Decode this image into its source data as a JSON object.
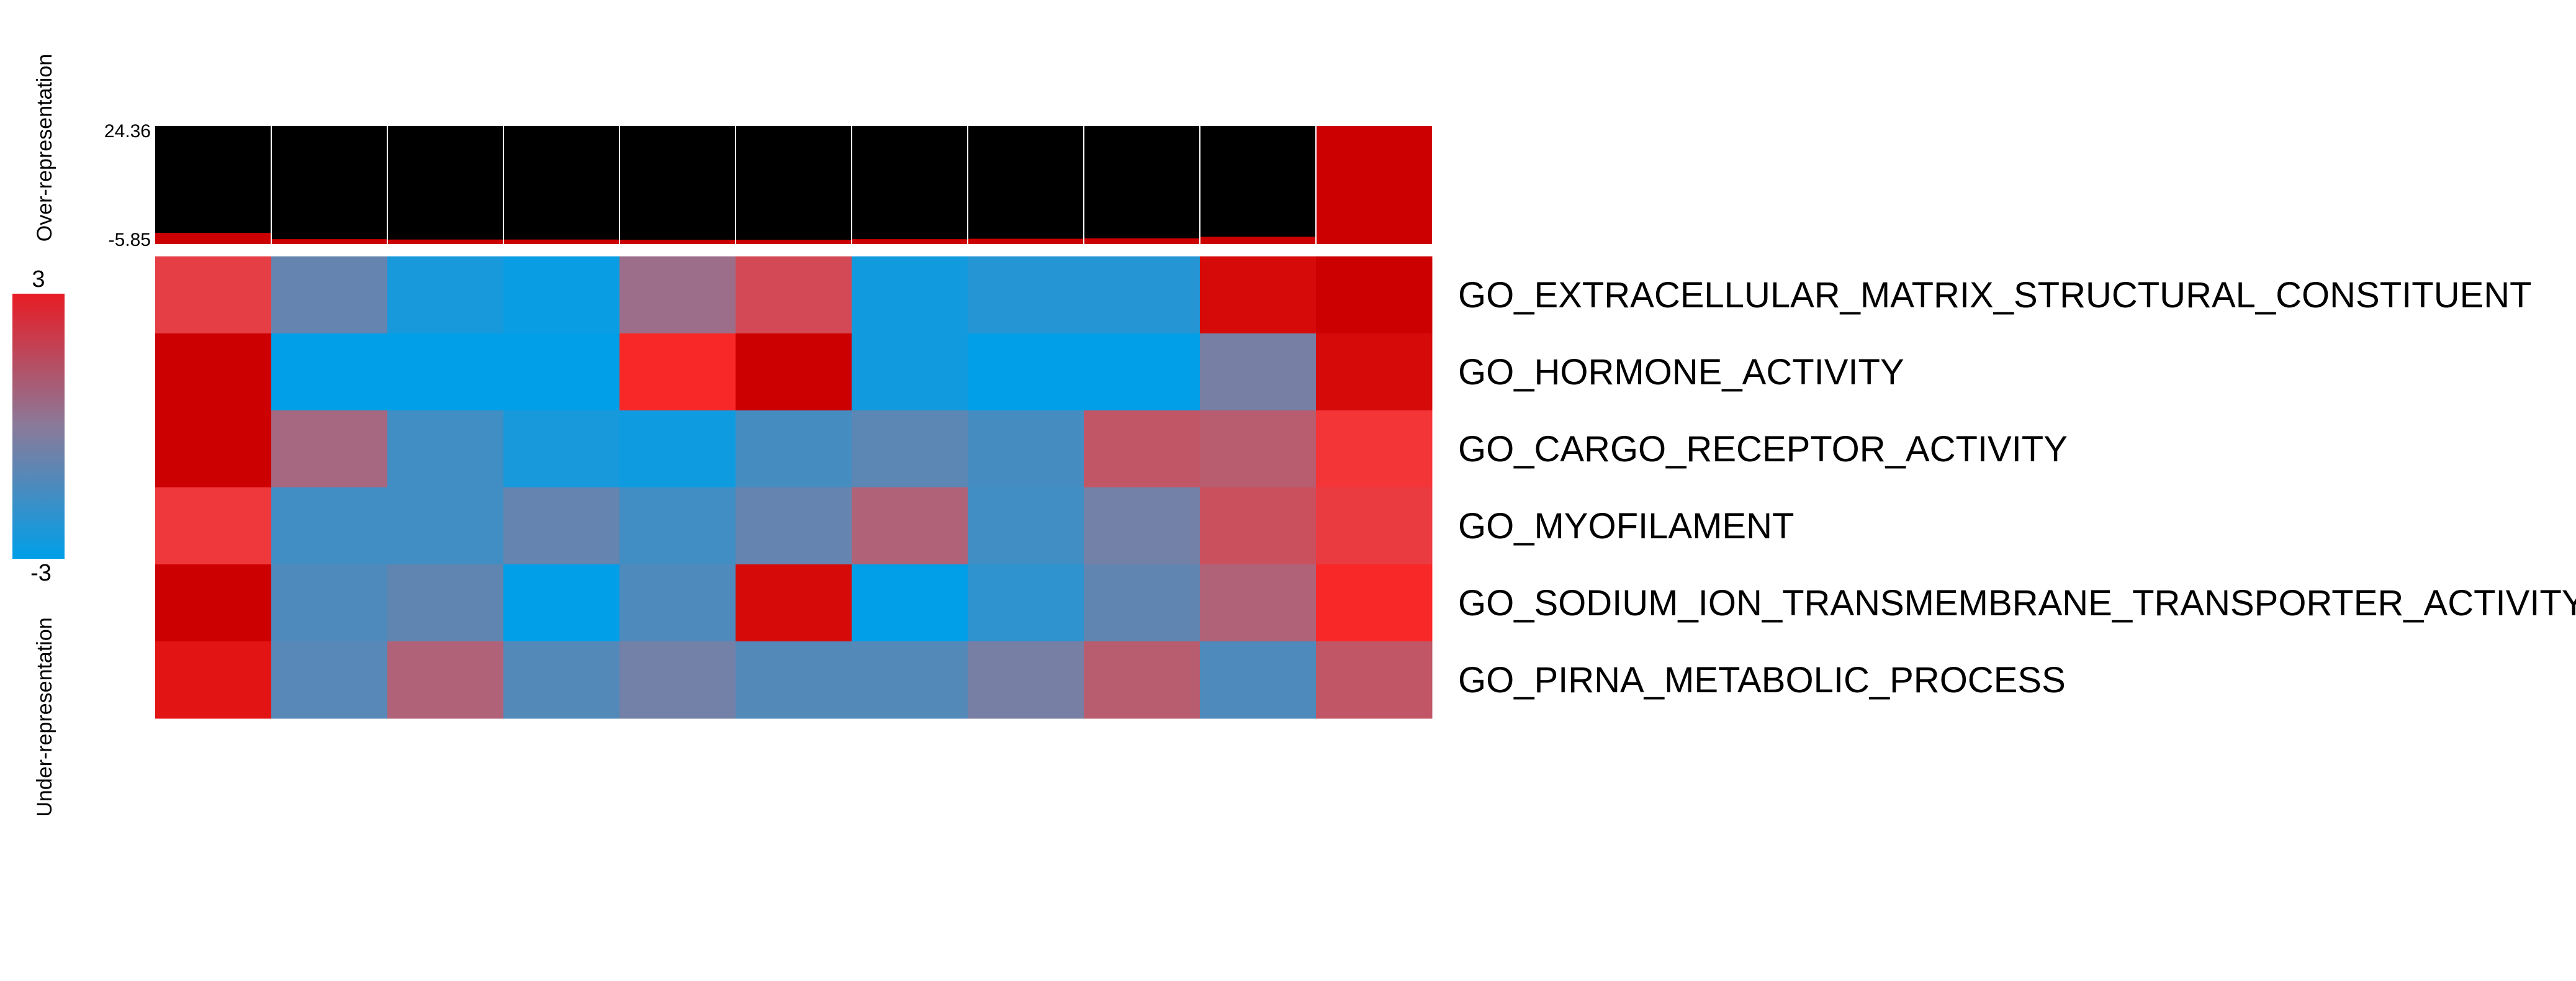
{
  "chart_data": {
    "type": "heatmap",
    "top_bar": {
      "ymax_label": "24.36",
      "ymin_label": "-5.85",
      "ylim": [
        -5.85,
        24.36
      ],
      "values": [
        -3.0,
        -4.6,
        -4.7,
        -4.7,
        -4.8,
        -4.8,
        -4.6,
        -4.5,
        -4.4,
        -4.0,
        24.36
      ]
    },
    "rows": [
      "GO_EXTRACELLULAR_MATRIX_STRUCTURAL_CONSTITUENT",
      "GO_HORMONE_ACTIVITY",
      "GO_CARGO_RECEPTOR_ACTIVITY",
      "GO_MYOFILAMENT",
      "GO_SODIUM_ION_TRANSMEMBRANE_TRANSPORTER_ACTIVITY",
      "GO_PIRNA_METABOLIC_PROCESS"
    ],
    "values": [
      [
        2.0,
        -0.8,
        -2.5,
        -2.8,
        0.4,
        1.6,
        -2.6,
        -2.2,
        -2.2,
        2.9,
        3.0
      ],
      [
        3.0,
        -3.0,
        -3.0,
        -3.0,
        2.6,
        3.0,
        -2.6,
        -3.0,
        -3.0,
        -0.4,
        2.9
      ],
      [
        3.0,
        0.6,
        -1.6,
        -2.5,
        -2.7,
        -1.5,
        -1.0,
        -1.5,
        1.2,
        1.0,
        2.3
      ],
      [
        2.2,
        -1.6,
        -1.6,
        -0.8,
        -1.6,
        -0.8,
        0.8,
        -1.6,
        -0.5,
        1.4,
        2.1
      ],
      [
        3.0,
        -1.3,
        -0.9,
        -3.0,
        -1.3,
        2.9,
        -3.0,
        -2.0,
        -0.9,
        0.8,
        2.6
      ],
      [
        2.8,
        -1.1,
        0.8,
        -1.2,
        -0.5,
        -1.2,
        -1.2,
        -0.4,
        1.0,
        -1.3,
        1.2
      ]
    ],
    "color_scale": {
      "min": -3,
      "max": 3,
      "low": "#009fe8",
      "mid": "#8a7a9a",
      "high": "#cc0000",
      "max_label": "3",
      "min_label": "-3"
    },
    "top_bar_colors": {
      "background": "#000000",
      "fill": "#cc0000"
    },
    "legend": {
      "over_label": "Over-representation",
      "under_label": "Under-representation"
    }
  }
}
